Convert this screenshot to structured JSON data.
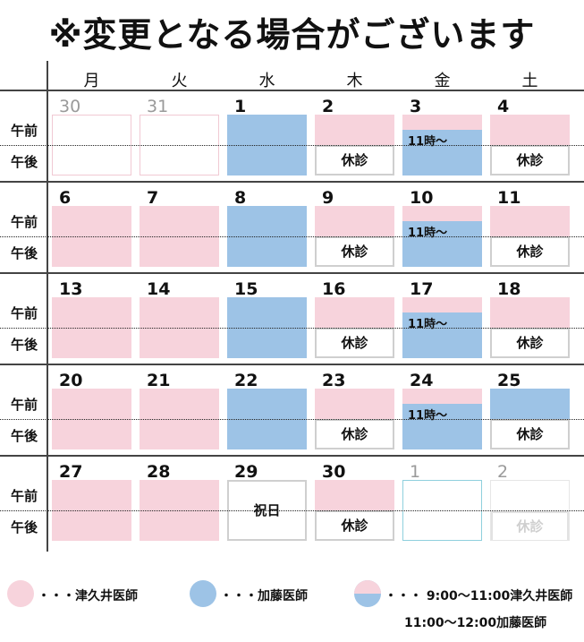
{
  "title": "※変更となる場合がございます",
  "weekdays": [
    "月",
    "火",
    "水",
    "木",
    "金",
    "土"
  ],
  "periods": {
    "am": "午前",
    "pm": "午後"
  },
  "labels": {
    "closed": "休診",
    "holiday": "祝日",
    "from11": "11時～"
  },
  "colors": {
    "pink": "#f7d3dc",
    "blue": "#9dc3e6"
  },
  "weeks": [
    [
      {
        "day": "30",
        "type": "empty",
        "gray": true
      },
      {
        "day": "31",
        "type": "empty",
        "gray": true
      },
      {
        "day": "1",
        "type": "blue"
      },
      {
        "day": "2",
        "type": "pink_closed"
      },
      {
        "day": "3",
        "type": "split"
      },
      {
        "day": "4",
        "type": "pink_closed"
      }
    ],
    [
      {
        "day": "6",
        "type": "pink"
      },
      {
        "day": "7",
        "type": "pink"
      },
      {
        "day": "8",
        "type": "blue"
      },
      {
        "day": "9",
        "type": "pink_closed"
      },
      {
        "day": "10",
        "type": "split"
      },
      {
        "day": "11",
        "type": "pink_closed"
      }
    ],
    [
      {
        "day": "13",
        "type": "pink"
      },
      {
        "day": "14",
        "type": "pink"
      },
      {
        "day": "15",
        "type": "blue"
      },
      {
        "day": "16",
        "type": "pink_closed"
      },
      {
        "day": "17",
        "type": "split"
      },
      {
        "day": "18",
        "type": "pink_closed"
      }
    ],
    [
      {
        "day": "20",
        "type": "pink"
      },
      {
        "day": "21",
        "type": "pink"
      },
      {
        "day": "22",
        "type": "blue"
      },
      {
        "day": "23",
        "type": "pink_closed"
      },
      {
        "day": "24",
        "type": "split"
      },
      {
        "day": "25",
        "type": "blue_closed"
      }
    ],
    [
      {
        "day": "27",
        "type": "pink"
      },
      {
        "day": "28",
        "type": "pink"
      },
      {
        "day": "29",
        "type": "holiday"
      },
      {
        "day": "30",
        "type": "pink_closed"
      },
      {
        "day": "1",
        "type": "empty_cyan",
        "gray": true
      },
      {
        "day": "2",
        "type": "faint_closed",
        "gray": true
      }
    ]
  ],
  "legend": {
    "tsukui": "・・・津久井医師",
    "kato": "・・・加藤医師",
    "split_line1": "・・・ 9:00～11:00津久井医師",
    "split_line2": "11:00～12:00加藤医師"
  }
}
